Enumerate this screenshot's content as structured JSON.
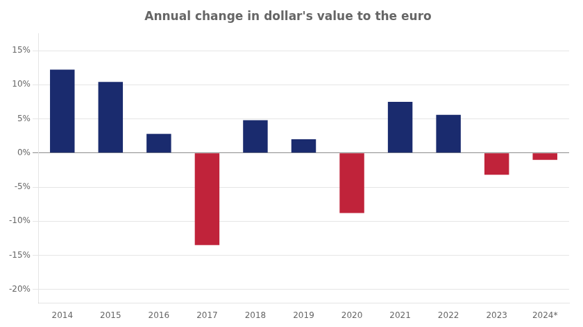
{
  "chart_data": {
    "type": "bar",
    "title": "Annual change in dollar's value to the euro",
    "categories": [
      "2014",
      "2015",
      "2016",
      "2017",
      "2018",
      "2019",
      "2020",
      "2021",
      "2022",
      "2023",
      "2024*"
    ],
    "values": [
      0.122,
      0.104,
      0.028,
      -0.135,
      0.048,
      0.02,
      -0.088,
      0.075,
      0.056,
      -0.032,
      -0.01
    ],
    "colors": [
      "#1a2b6e",
      "#1a2b6e",
      "#1a2b6e",
      "#c0233a",
      "#1a2b6e",
      "#1a2b6e",
      "#c0233a",
      "#1a2b6e",
      "#1a2b6e",
      "#c0233a",
      "#c0233a"
    ],
    "ylim": [
      -0.22,
      0.175
    ],
    "yticks": [
      {
        "value": -0.2,
        "label": "-20%"
      },
      {
        "value": -0.15,
        "label": "-15%"
      },
      {
        "value": -0.1,
        "label": "-10%"
      },
      {
        "value": -0.05,
        "label": "-5%"
      },
      {
        "value": 0.0,
        "label": "0%"
      },
      {
        "value": 0.05,
        "label": "5%"
      },
      {
        "value": 0.1,
        "label": "10%"
      },
      {
        "value": 0.15,
        "label": "15%"
      }
    ],
    "grid": true
  }
}
